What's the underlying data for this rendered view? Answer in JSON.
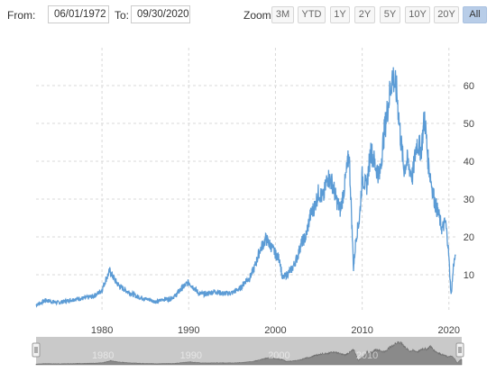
{
  "toolbar": {
    "from_label": "From:",
    "from_value": "06/01/1972",
    "to_label": "To:",
    "to_value": "09/30/2020",
    "zoom_label": "Zoom:",
    "zoom_buttons": [
      "3M",
      "YTD",
      "1Y",
      "2Y",
      "5Y",
      "10Y",
      "20Y",
      "All"
    ],
    "zoom_active": "All"
  },
  "colors": {
    "line": "#5b9bd5",
    "grid": "#d8d8d8",
    "active_zoom": "#b8cde8",
    "navigator_bg": "#c9c9c9",
    "navigator_series": "#8a8a8a"
  },
  "chart_data": {
    "type": "line",
    "title": "",
    "xlabel": "",
    "ylabel": "",
    "x_range": [
      1972.4,
      2020.75
    ],
    "ylim": [
      0,
      70
    ],
    "x_ticks": [
      1980,
      1990,
      2000,
      2010,
      2020
    ],
    "y_ticks": [
      10,
      20,
      30,
      40,
      50,
      60
    ],
    "grid": "dashed vertical and horizontal",
    "y_axis_side": "right",
    "series": [
      {
        "x": [
          1972.4,
          1973.0,
          1973.5,
          1974.0,
          1975.0,
          1976.0,
          1977.0,
          1978.0,
          1979.0,
          1979.5,
          1980.0,
          1980.4,
          1980.9,
          1981.5,
          1982.0,
          1983.0,
          1984.0,
          1985.0,
          1985.5,
          1986.0,
          1986.3,
          1987.0,
          1987.8,
          1988.5,
          1989.0,
          1990.0,
          1990.7,
          1991.2,
          1992.0,
          1993.0,
          1994.0,
          1995.0,
          1996.0,
          1996.6,
          1997.0,
          1997.6,
          1998.2,
          1998.9,
          1999.5,
          2000.0,
          2000.5,
          2000.8,
          2001.3,
          2001.9,
          2002.5,
          2003.0,
          2003.5,
          2004.0,
          2004.5,
          2005.0,
          2005.5,
          2006.0,
          2006.6,
          2007.0,
          2007.5,
          2008.0,
          2008.5,
          2008.8,
          2009.0,
          2009.3,
          2009.7,
          2010.0,
          2010.5,
          2011.0,
          2011.5,
          2012.0,
          2012.5,
          2013.0,
          2013.5,
          2014.0,
          2014.4,
          2014.8,
          2015.2,
          2015.8,
          2016.3,
          2016.8,
          2017.2,
          2017.6,
          2018.0,
          2018.4,
          2018.8,
          2019.2,
          2019.6,
          2019.9,
          2020.1,
          2020.25,
          2020.4,
          2020.55,
          2020.75
        ],
        "y": [
          2.0,
          2.6,
          3.2,
          3.0,
          2.6,
          3.1,
          3.6,
          3.8,
          4.3,
          5.0,
          6.0,
          8.5,
          11.0,
          8.5,
          7.0,
          5.5,
          4.3,
          3.6,
          3.4,
          3.0,
          2.8,
          3.5,
          3.6,
          4.5,
          6.0,
          8.0,
          6.3,
          5.0,
          4.9,
          5.6,
          5.0,
          5.2,
          6.5,
          8.5,
          9.0,
          12.0,
          16.5,
          19.5,
          17.5,
          15.5,
          14.0,
          9.0,
          10.0,
          11.5,
          14.5,
          18.5,
          20.0,
          25.5,
          28.0,
          32.0,
          30.0,
          36.0,
          34.0,
          30.0,
          27.0,
          34.0,
          42.0,
          24.0,
          11.5,
          20.0,
          25.0,
          36.0,
          33.0,
          43.0,
          39.0,
          36.0,
          47.0,
          55.0,
          63.0,
          58.0,
          47.0,
          38.0,
          40.0,
          36.0,
          45.0,
          43.0,
          52.0,
          40.0,
          34.0,
          29.0,
          26.0,
          22.0,
          24.0,
          18.0,
          10.5,
          4.5,
          8.5,
          13.0,
          15.0
        ]
      }
    ],
    "navigator": {
      "x_ticks": [
        1980,
        1990,
        2000,
        2010
      ]
    }
  }
}
